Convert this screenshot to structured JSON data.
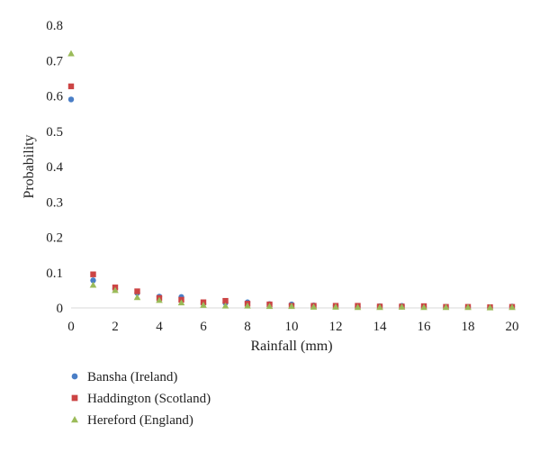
{
  "chart_data": {
    "type": "scatter",
    "title": "",
    "xlabel": "Rainfall (mm)",
    "ylabel": "Probability",
    "xlim": [
      0,
      20
    ],
    "ylim": [
      0,
      0.8
    ],
    "x_ticks": [
      "0",
      "2",
      "4",
      "6",
      "8",
      "10",
      "12",
      "14",
      "16",
      "18",
      "20"
    ],
    "y_ticks": [
      "0",
      "0.1",
      "0.2",
      "0.3",
      "0.4",
      "0.5",
      "0.6",
      "0.7",
      "0.8"
    ],
    "grid": false,
    "legend_position": "bottom-left",
    "x": [
      0,
      1,
      2,
      3,
      4,
      5,
      6,
      7,
      8,
      9,
      10,
      11,
      12,
      13,
      14,
      15,
      16,
      17,
      18,
      19,
      20
    ],
    "series": [
      {
        "name": "Bansha (Ireland)",
        "marker": "circle",
        "color": "#4a7ec6",
        "values": [
          0.59,
          0.078,
          0.055,
          0.042,
          0.032,
          0.031,
          0.012,
          0.014,
          0.016,
          0.011,
          0.01,
          0.007,
          0.006,
          0.004,
          0.005,
          0.006,
          0.004,
          0.003,
          0.003,
          0.002,
          0.004
        ]
      },
      {
        "name": "Haddington (Scotland)",
        "marker": "square",
        "color": "#cc4444",
        "values": [
          0.627,
          0.095,
          0.058,
          0.047,
          0.028,
          0.023,
          0.016,
          0.02,
          0.012,
          0.01,
          0.006,
          0.006,
          0.006,
          0.006,
          0.004,
          0.004,
          0.005,
          0.003,
          0.003,
          0.002,
          0.003
        ]
      },
      {
        "name": "Hereford (England)",
        "marker": "triangle",
        "color": "#9bbb59",
        "values": [
          0.72,
          0.065,
          0.05,
          0.03,
          0.022,
          0.015,
          0.008,
          0.006,
          0.006,
          0.005,
          0.005,
          0.003,
          0.003,
          0.002,
          0.002,
          0.003,
          0.002,
          0.002,
          0.002,
          0.001,
          0.002
        ]
      }
    ]
  }
}
